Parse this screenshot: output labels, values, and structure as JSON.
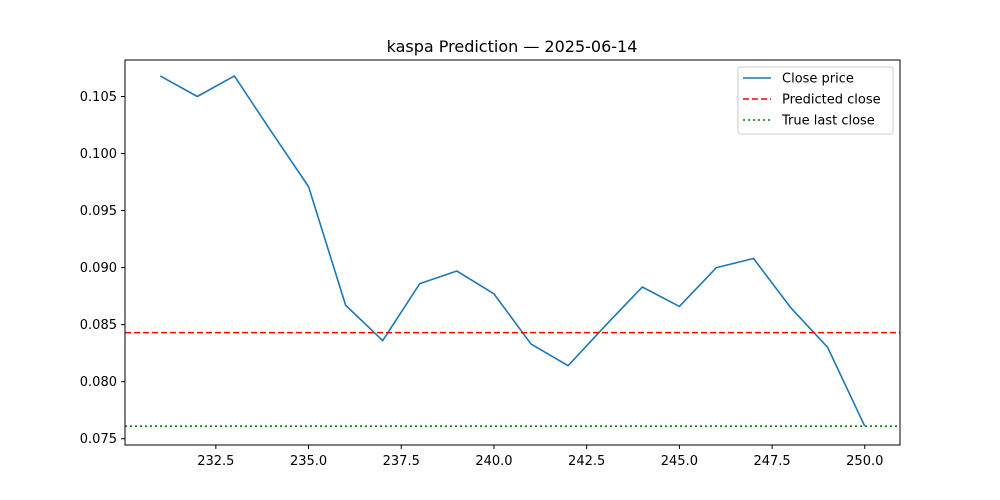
{
  "chart_data": {
    "type": "line",
    "title": "kaspa Prediction — 2025-06-14",
    "xlabel": "",
    "ylabel": "",
    "xlim": [
      230.05,
      250.95
    ],
    "ylim": [
      0.07445,
      0.1082
    ],
    "x_ticks": [
      {
        "value": 232.5,
        "label": "232.5"
      },
      {
        "value": 235.0,
        "label": "235.0"
      },
      {
        "value": 237.5,
        "label": "237.5"
      },
      {
        "value": 240.0,
        "label": "240.0"
      },
      {
        "value": 242.5,
        "label": "242.5"
      },
      {
        "value": 245.0,
        "label": "245.0"
      },
      {
        "value": 247.5,
        "label": "247.5"
      },
      {
        "value": 250.0,
        "label": "250.0"
      }
    ],
    "y_ticks": [
      {
        "value": 0.075,
        "label": "0.075"
      },
      {
        "value": 0.08,
        "label": "0.080"
      },
      {
        "value": 0.085,
        "label": "0.085"
      },
      {
        "value": 0.09,
        "label": "0.090"
      },
      {
        "value": 0.095,
        "label": "0.095"
      },
      {
        "value": 0.1,
        "label": "0.100"
      },
      {
        "value": 0.105,
        "label": "0.105"
      }
    ],
    "grid": false,
    "legend_position": "top-right",
    "series": [
      {
        "name": "Close price",
        "style": "solid",
        "color": "#1f77b4",
        "x": [
          231,
          232,
          233,
          234,
          235,
          236,
          237,
          238,
          239,
          240,
          241,
          242,
          243,
          244,
          245,
          246,
          247,
          248,
          249,
          250
        ],
        "y": [
          0.1068,
          0.105,
          0.1068,
          0.1019,
          0.0971,
          0.0867,
          0.0836,
          0.0886,
          0.0897,
          0.0877,
          0.0833,
          0.0814,
          0.0849,
          0.0883,
          0.0866,
          0.09,
          0.0908,
          0.0865,
          0.083,
          0.0761
        ]
      },
      {
        "name": "Predicted close",
        "style": "dashed",
        "color": "#ff0000",
        "hline": 0.0843
      },
      {
        "name": "True last close",
        "style": "dotted",
        "color": "#008000",
        "hline": 0.0761
      }
    ]
  }
}
